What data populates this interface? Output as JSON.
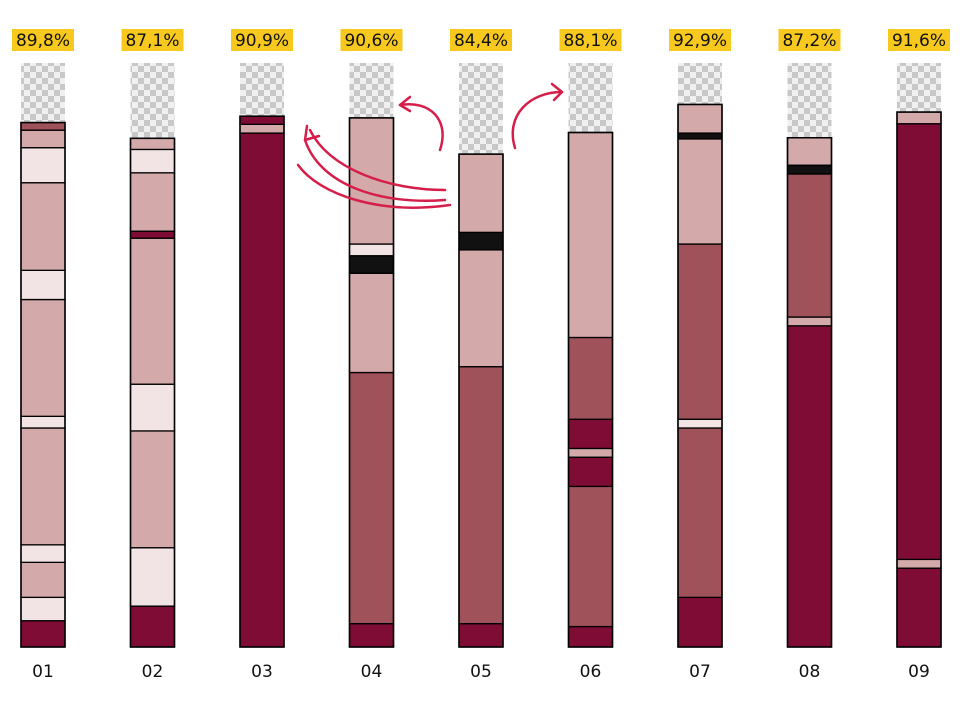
{
  "chart_data": {
    "type": "stacked-column",
    "categories": [
      "01",
      "02",
      "03",
      "04",
      "05",
      "06",
      "07",
      "08",
      "09"
    ],
    "values": [
      89.8,
      87.1,
      90.9,
      90.6,
      84.4,
      88.1,
      92.9,
      87.2,
      91.6
    ],
    "value_labels": [
      "89,8%",
      "87,1%",
      "90,9%",
      "90,6%",
      "84,4%",
      "88,1%",
      "92,9%",
      "87,2%",
      "91,6%"
    ],
    "ylim": [
      0,
      100
    ],
    "label_color": "#f7c81e",
    "segments": [
      [
        {
          "color": "#7f0c35",
          "value": 4.5
        },
        {
          "color": "#f2e4e4",
          "value": 4
        },
        {
          "color": "#d4a9a9",
          "value": 6
        },
        {
          "color": "#f2e4e4",
          "value": 3
        },
        {
          "color": "#d4a9a9",
          "value": 20
        },
        {
          "color": "#f2e4e4",
          "value": 2
        },
        {
          "color": "#d4a9a9",
          "value": 20
        },
        {
          "color": "#f2e4e4",
          "value": 5
        },
        {
          "color": "#d4a9a9",
          "value": 15
        },
        {
          "color": "#f2e4e4",
          "value": 6
        },
        {
          "color": "#d4a9a9",
          "value": 3
        },
        {
          "color": "#a0525a",
          "value": 1.3
        }
      ],
      [
        {
          "color": "#7f0c35",
          "value": 7
        },
        {
          "color": "#f2e4e4",
          "value": 10
        },
        {
          "color": "#d4a9a9",
          "value": 20
        },
        {
          "color": "#f2e4e4",
          "value": 8
        },
        {
          "color": "#d4a9a9",
          "value": 25
        },
        {
          "color": "#7f0c35",
          "value": 1.2
        },
        {
          "color": "#d4a9a9",
          "value": 10
        },
        {
          "color": "#f2e4e4",
          "value": 4
        },
        {
          "color": "#d4a9a9",
          "value": 1.9
        }
      ],
      [
        {
          "color": "#7f0c35",
          "value": 88
        },
        {
          "color": "#d4a9a9",
          "value": 1.5
        },
        {
          "color": "#7f0c35",
          "value": 1.4
        }
      ],
      [
        {
          "color": "#7f0c35",
          "value": 4
        },
        {
          "color": "#a0525a",
          "value": 43
        },
        {
          "color": "#d4a9a9",
          "value": 17
        },
        {
          "color": "#111111",
          "value": 3
        },
        {
          "color": "#f2e4e4",
          "value": 2
        },
        {
          "color": "#d4a9a9",
          "value": 21.6
        }
      ],
      [
        {
          "color": "#7f0c35",
          "value": 4
        },
        {
          "color": "#a0525a",
          "value": 44
        },
        {
          "color": "#d4a9a9",
          "value": 20
        },
        {
          "color": "#111111",
          "value": 3
        },
        {
          "color": "#d4a9a9",
          "value": 13.4
        }
      ],
      [
        {
          "color": "#7f0c35",
          "value": 3.5
        },
        {
          "color": "#a0525a",
          "value": 24
        },
        {
          "color": "#7f0c35",
          "value": 5
        },
        {
          "color": "#d4a9a9",
          "value": 1.5
        },
        {
          "color": "#7f0c35",
          "value": 5
        },
        {
          "color": "#a0525a",
          "value": 14
        },
        {
          "color": "#d4a9a9",
          "value": 35.1
        }
      ],
      [
        {
          "color": "#7f0c35",
          "value": 8.5
        },
        {
          "color": "#a0525a",
          "value": 29
        },
        {
          "color": "#f2e4e4",
          "value": 1.5
        },
        {
          "color": "#a0525a",
          "value": 30
        },
        {
          "color": "#d4a9a9",
          "value": 18
        },
        {
          "color": "#111111",
          "value": 1
        },
        {
          "color": "#d4a9a9",
          "value": 4.9
        }
      ],
      [
        {
          "color": "#7f0c35",
          "value": 55
        },
        {
          "color": "#d4a9a9",
          "value": 1.5
        },
        {
          "color": "#a0525a",
          "value": 24.5
        },
        {
          "color": "#111111",
          "value": 1.5
        },
        {
          "color": "#d4a9a9",
          "value": 4.7
        }
      ],
      [
        {
          "color": "#7f0c35",
          "value": 13.5
        },
        {
          "color": "#d4a9a9",
          "value": 1.5
        },
        {
          "color": "#7f0c35",
          "value": 74.6
        },
        {
          "color": "#d4a9a9",
          "value": 2
        }
      ]
    ]
  }
}
